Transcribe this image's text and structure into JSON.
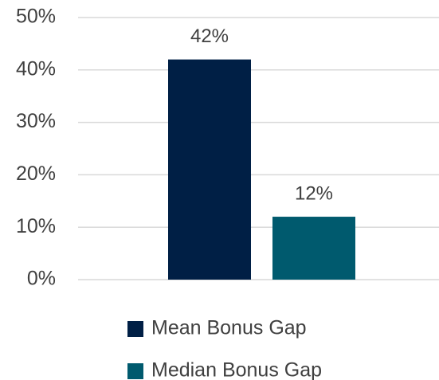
{
  "chart_data": {
    "type": "bar",
    "categories": [
      null
    ],
    "series": [
      {
        "name": "Mean Bonus Gap",
        "color": "#001f45",
        "values": [
          42
        ],
        "value_labels": [
          "42%"
        ]
      },
      {
        "name": "Median Bonus Gap",
        "color": "#005a6e",
        "values": [
          12
        ],
        "value_labels": [
          "12%"
        ]
      }
    ],
    "ylim": [
      0,
      50
    ],
    "yticks": [
      {
        "value": 0,
        "label": "0%"
      },
      {
        "value": 10,
        "label": "10%"
      },
      {
        "value": 20,
        "label": "20%"
      },
      {
        "value": 30,
        "label": "30%"
      },
      {
        "value": 40,
        "label": "40%"
      },
      {
        "value": 50,
        "label": "50%"
      }
    ],
    "grid": true,
    "legend": "bottom"
  }
}
